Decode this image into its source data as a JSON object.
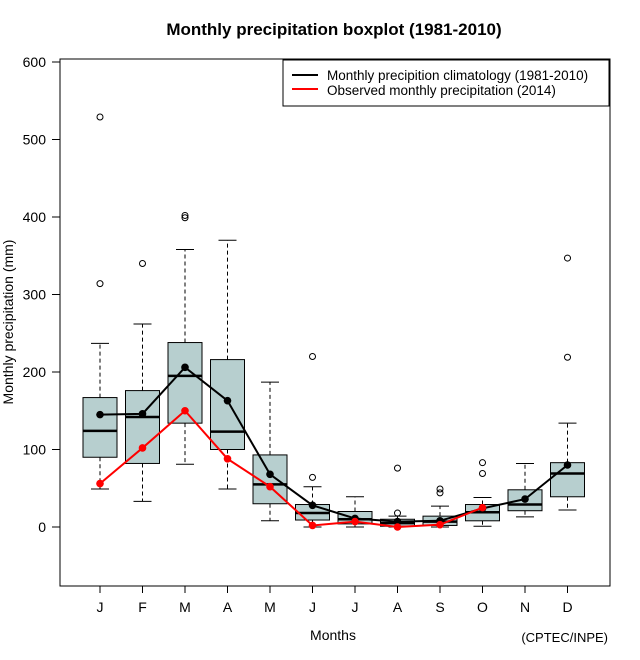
{
  "chart_data": {
    "type": "boxplot",
    "title": "Monthly precipitation boxplot (1981-2010)",
    "xlabel": "Months",
    "ylabel": "Monthly precipitation (mm)",
    "credit": "(CPTEC/INPE)",
    "ylim": [
      -75,
      610
    ],
    "yticks": [
      0,
      100,
      200,
      300,
      400,
      500,
      600
    ],
    "categories": [
      "J",
      "F",
      "M",
      "A",
      "M",
      "J",
      "J",
      "A",
      "S",
      "O",
      "N",
      "D"
    ],
    "boxes": [
      {
        "q1": 90,
        "median": 124,
        "q3": 167,
        "whisker_low": 49,
        "whisker_high": 237,
        "outliers": [
          314,
          529
        ]
      },
      {
        "q1": 82,
        "median": 142,
        "q3": 176,
        "whisker_low": 33,
        "whisker_high": 262,
        "outliers": [
          340
        ]
      },
      {
        "q1": 134,
        "median": 195,
        "q3": 238,
        "whisker_low": 81,
        "whisker_high": 358,
        "outliers": [
          399,
          402
        ]
      },
      {
        "q1": 100,
        "median": 123,
        "q3": 216,
        "whisker_low": 49,
        "whisker_high": 370,
        "outliers": []
      },
      {
        "q1": 30,
        "median": 55,
        "q3": 93,
        "whisker_low": 8,
        "whisker_high": 187,
        "outliers": []
      },
      {
        "q1": 9,
        "median": 18,
        "q3": 29,
        "whisker_low": 0,
        "whisker_high": 52,
        "outliers": [
          64,
          220
        ]
      },
      {
        "q1": 4,
        "median": 10,
        "q3": 20,
        "whisker_low": 0,
        "whisker_high": 39,
        "outliers": []
      },
      {
        "q1": 1,
        "median": 5,
        "q3": 10,
        "whisker_low": 0,
        "whisker_high": 14,
        "outliers": [
          18,
          76
        ]
      },
      {
        "q1": 2,
        "median": 7,
        "q3": 14,
        "whisker_low": 0,
        "whisker_high": 27,
        "outliers": [
          44,
          49
        ]
      },
      {
        "q1": 8,
        "median": 19,
        "q3": 29,
        "whisker_low": 1,
        "whisker_high": 38,
        "outliers": [
          69,
          83
        ]
      },
      {
        "q1": 21,
        "median": 29,
        "q3": 48,
        "whisker_low": 13,
        "whisker_high": 82,
        "outliers": []
      },
      {
        "q1": 39,
        "median": 69,
        "q3": 83,
        "whisker_low": 22,
        "whisker_high": 134,
        "outliers": [
          219,
          347
        ]
      }
    ],
    "series": [
      {
        "name": "Monthly precipition climatology (1981-2010)",
        "color": "#000000",
        "values": [
          145,
          146,
          206,
          163,
          68,
          28,
          11,
          7,
          8,
          24,
          36,
          80
        ]
      },
      {
        "name": "Observed monthly precipitation (2014)",
        "color": "#ff0000",
        "values": [
          56,
          102,
          150,
          88,
          52,
          2,
          7,
          0,
          3,
          25,
          null,
          null
        ]
      }
    ],
    "box_fill": "#b7cfcf",
    "legend_position": "top-right",
    "grid": false
  }
}
